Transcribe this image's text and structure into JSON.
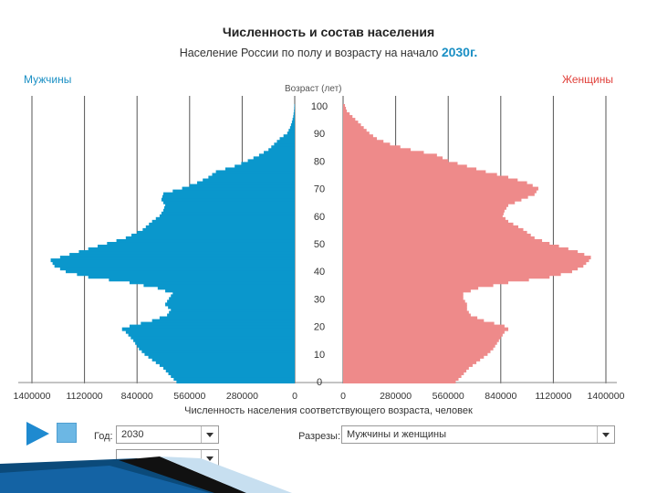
{
  "header": {
    "title": "Численность и состав населения",
    "subtitle": "Население России по полу и возрасту на начало",
    "year_text": "2030г."
  },
  "labels": {
    "male": "Мужчины",
    "female": "Женщины",
    "age_axis": "Возраст (лет)"
  },
  "controls": {
    "year_label": "Год:",
    "year_value": "2030",
    "cuts_label": "Разрезы:",
    "cuts_value": "Мужчины и женщины"
  },
  "colors": {
    "male": "#0a97cc",
    "female": "#ee8a8a",
    "grid": "#555555",
    "play": "#1f8ad0",
    "stop": "#6cb7e4"
  },
  "chart_data": {
    "type": "bar",
    "orientation": "horizontal",
    "xlabel": "Численность населения соответствующего возраста, человек",
    "ylabel": "Возраст (лет)",
    "age_ticks": [
      "0",
      "10",
      "20",
      "30",
      "40",
      "50",
      "60",
      "70",
      "80",
      "90",
      "100"
    ],
    "male_ticks": [
      "1400000",
      "1120000",
      "840000",
      "560000",
      "280000",
      "0"
    ],
    "female_ticks": [
      "0",
      "280000",
      "560000",
      "840000",
      "1120000",
      "1400000"
    ],
    "xlim": [
      0,
      1400000
    ],
    "ylim": [
      0,
      100
    ],
    "grid": true,
    "series": [
      {
        "name": "Мужчины",
        "ages": [
          0,
          2,
          5,
          8,
          10,
          12,
          15,
          18,
          19,
          20,
          22,
          24,
          26,
          28,
          30,
          32,
          34,
          36,
          38,
          40,
          42,
          44,
          45,
          47,
          50,
          52,
          55,
          58,
          60,
          62,
          64,
          66,
          68,
          70,
          72,
          74,
          76,
          78,
          80,
          82,
          84,
          86,
          88,
          90,
          92,
          94,
          96,
          98,
          100
        ],
        "values": [
          630000,
          660000,
          700000,
          760000,
          800000,
          830000,
          860000,
          900000,
          920000,
          880000,
          760000,
          680000,
          660000,
          690000,
          670000,
          650000,
          730000,
          880000,
          1100000,
          1220000,
          1280000,
          1300000,
          1250000,
          1150000,
          1000000,
          900000,
          810000,
          760000,
          720000,
          700000,
          690000,
          710000,
          700000,
          600000,
          520000,
          460000,
          420000,
          320000,
          250000,
          190000,
          140000,
          110000,
          80000,
          40000,
          25000,
          15000,
          8000,
          4000,
          2000
        ]
      },
      {
        "name": "Женщины",
        "ages": [
          0,
          2,
          5,
          8,
          10,
          12,
          15,
          18,
          19,
          20,
          22,
          24,
          26,
          28,
          30,
          32,
          34,
          36,
          38,
          40,
          42,
          44,
          45,
          47,
          50,
          52,
          55,
          58,
          60,
          62,
          64,
          66,
          68,
          70,
          72,
          74,
          76,
          78,
          80,
          82,
          84,
          86,
          88,
          90,
          92,
          94,
          96,
          98,
          100
        ],
        "values": [
          600000,
          630000,
          670000,
          730000,
          770000,
          800000,
          830000,
          860000,
          880000,
          860000,
          750000,
          680000,
          660000,
          660000,
          640000,
          640000,
          720000,
          880000,
          1100000,
          1220000,
          1280000,
          1310000,
          1320000,
          1250000,
          1100000,
          1020000,
          960000,
          880000,
          850000,
          860000,
          880000,
          950000,
          1020000,
          1040000,
          980000,
          880000,
          760000,
          660000,
          560000,
          500000,
          360000,
          250000,
          180000,
          140000,
          110000,
          80000,
          50000,
          20000,
          10000
        ]
      }
    ]
  }
}
